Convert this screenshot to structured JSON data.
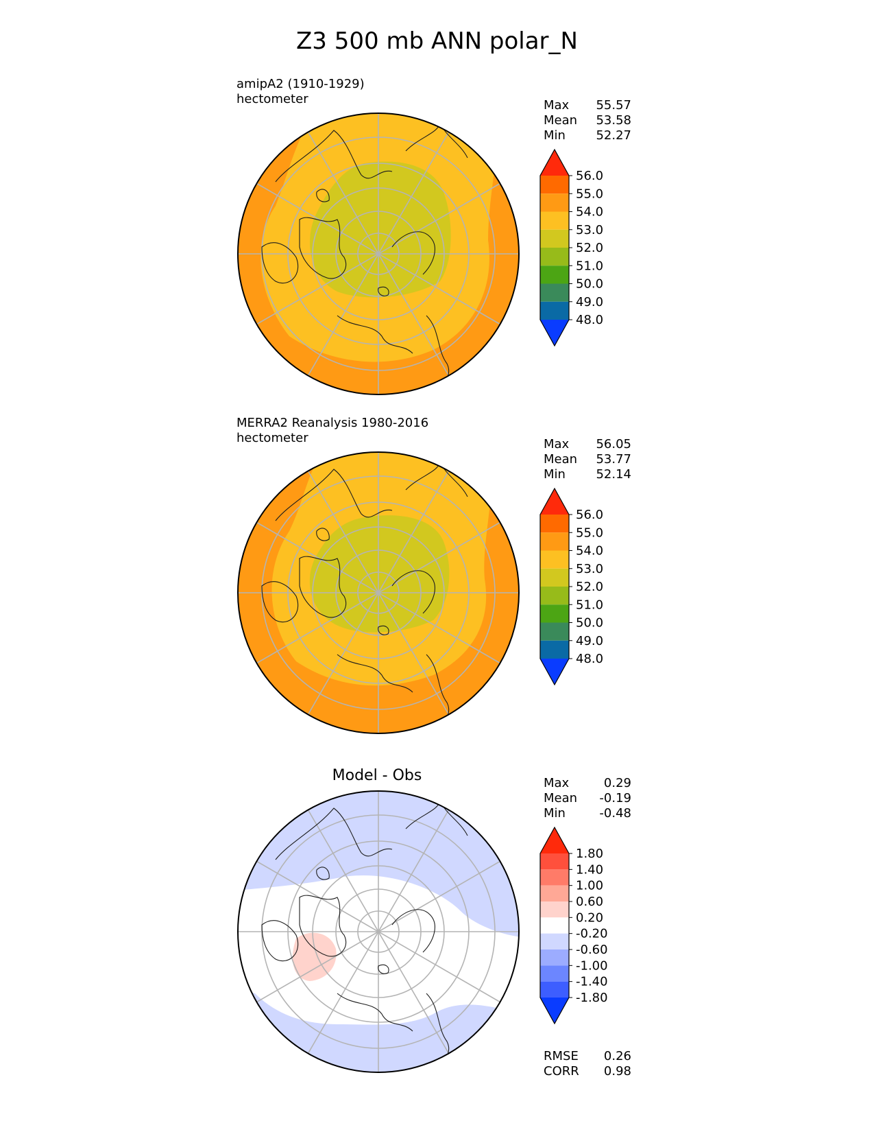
{
  "figure": {
    "title": "Z3 500 mb ANN polar_N"
  },
  "panels": [
    {
      "label": "amipA2 (1910-1929)",
      "units": "hectometer",
      "stats": [
        {
          "name": "Max",
          "value": "55.57"
        },
        {
          "name": "Mean",
          "value": "53.58"
        },
        {
          "name": "Min",
          "value": "52.27"
        }
      ]
    },
    {
      "label": "MERRA2 Reanalysis 1980-2016",
      "units": "hectometer",
      "stats": [
        {
          "name": "Max",
          "value": "56.05"
        },
        {
          "name": "Mean",
          "value": "53.77"
        },
        {
          "name": "Min",
          "value": "52.14"
        }
      ]
    },
    {
      "title": "Model - Obs",
      "stats": [
        {
          "name": "Max",
          "value": "0.29"
        },
        {
          "name": "Mean",
          "value": "-0.19"
        },
        {
          "name": "Min",
          "value": "-0.48"
        }
      ],
      "footer": [
        {
          "name": "RMSE",
          "value": "0.26"
        },
        {
          "name": "CORR",
          "value": "0.98"
        }
      ]
    }
  ],
  "chart_data": [
    {
      "type": "heatmap",
      "projection": "north-polar-stereographic",
      "title": "amipA2 (1910-1929)",
      "units": "hectometer",
      "colorbar": {
        "levels": [
          "56.0",
          "55.0",
          "54.0",
          "53.0",
          "52.0",
          "51.0",
          "50.0",
          "49.0",
          "48.0"
        ],
        "colors": [
          "#ff2a0b",
          "#ff6a00",
          "#ff9a14",
          "#fdc022",
          "#d2c81f",
          "#97bb1a",
          "#4ca514",
          "#3a8a5a",
          "#0a6aa5",
          "#0a3cff"
        ],
        "extend": "both"
      },
      "stats": {
        "max": 55.57,
        "mean": 53.58,
        "min": 52.27
      }
    },
    {
      "type": "heatmap",
      "projection": "north-polar-stereographic",
      "title": "MERRA2 Reanalysis 1980-2016",
      "units": "hectometer",
      "colorbar": {
        "levels": [
          "56.0",
          "55.0",
          "54.0",
          "53.0",
          "52.0",
          "51.0",
          "50.0",
          "49.0",
          "48.0"
        ],
        "colors": [
          "#ff2a0b",
          "#ff6a00",
          "#ff9a14",
          "#fdc022",
          "#d2c81f",
          "#97bb1a",
          "#4ca514",
          "#3a8a5a",
          "#0a6aa5",
          "#0a3cff"
        ],
        "extend": "both"
      },
      "stats": {
        "max": 56.05,
        "mean": 53.77,
        "min": 52.14
      }
    },
    {
      "type": "heatmap",
      "projection": "north-polar-stereographic",
      "title": "Model - Obs",
      "colorbar": {
        "levels": [
          "1.80",
          "1.40",
          "1.00",
          "0.60",
          "0.20",
          "-0.20",
          "-0.60",
          "-1.00",
          "-1.40",
          "-1.80"
        ],
        "colors": [
          "#ff2a0b",
          "#ff503c",
          "#ff7b68",
          "#ffa896",
          "#ffd3cc",
          "#ffffff",
          "#d0d8ff",
          "#9cacff",
          "#6c86ff",
          "#3d5eff",
          "#0a3cff"
        ],
        "extend": "both"
      },
      "stats": {
        "max": 0.29,
        "mean": -0.19,
        "min": -0.48,
        "rmse": 0.26,
        "corr": 0.98
      }
    }
  ]
}
